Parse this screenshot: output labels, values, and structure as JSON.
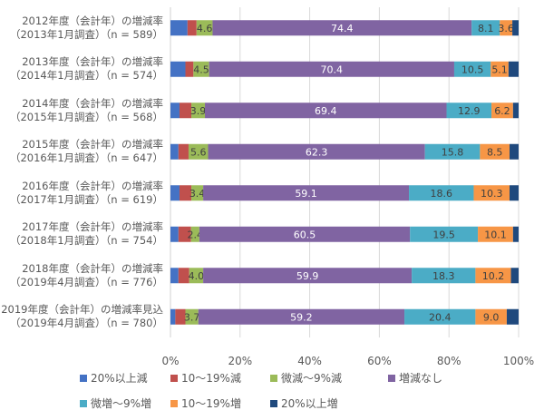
{
  "chart_data": {
    "type": "bar",
    "orientation": "horizontal",
    "stacked": "percent",
    "title": "",
    "xlabel": "",
    "ylabel": "",
    "xlim": [
      0,
      100
    ],
    "grid": true,
    "legend_position": "bottom",
    "x_ticks": [
      "0%",
      "20%",
      "40%",
      "60%",
      "80%",
      "100%"
    ],
    "categories": [
      [
        "2012年度（会計年）の増減率",
        "（2013年1月調査）（n = 589）"
      ],
      [
        "2013年度（会計年）の増減率",
        "（2014年1月調査）（n = 574）"
      ],
      [
        "2014年度（会計年）の増減率",
        "（2015年1月調査）（n = 568）"
      ],
      [
        "2015年度（会計年）の増減率",
        "（2016年1月調査）（n = 647）"
      ],
      [
        "2016年度（会計年）の増減率",
        "（2017年1月調査）（n = 619）"
      ],
      [
        "2017年度（会計年）の増減率",
        "（2018年1月調査）（n = 754）"
      ],
      [
        "2018年度（会計年）の増減率",
        "（2019年4月調査）（n = 776）"
      ],
      [
        "2019年度（会計年）の増減率見込",
        "（2019年4月調査）（n = 780）"
      ]
    ],
    "series": [
      {
        "name": "20%以上減",
        "color": "#4472C4",
        "values": [
          4.9,
          4.3,
          2.6,
          2.3,
          2.6,
          2.3,
          2.3,
          1.4
        ],
        "labels": [
          null,
          null,
          null,
          null,
          null,
          null,
          null,
          null
        ]
      },
      {
        "name": "10〜19%減",
        "color": "#C0504D",
        "values": [
          2.6,
          2.3,
          3.4,
          2.9,
          3.4,
          3.6,
          3.1,
          2.9
        ],
        "labels": [
          null,
          null,
          null,
          null,
          null,
          null,
          null,
          null
        ]
      },
      {
        "name": "微減〜9%減",
        "color": "#9BBB59",
        "values": [
          4.6,
          4.5,
          3.9,
          5.6,
          3.4,
          2.4,
          4.0,
          3.7
        ],
        "labels": [
          "4.6",
          "4.5",
          "3.9",
          "5.6",
          "3.4",
          "2.4",
          "4.0",
          "3.7"
        ]
      },
      {
        "name": "増減なし",
        "color": "#8064A2",
        "values": [
          74.4,
          70.4,
          69.4,
          62.3,
          59.1,
          60.5,
          59.9,
          59.2
        ],
        "labels": [
          "74.4",
          "70.4",
          "69.4",
          "62.3",
          "59.1",
          "60.5",
          "59.9",
          "59.2"
        ]
      },
      {
        "name": "微増〜9%増",
        "color": "#4BACC6",
        "values": [
          8.1,
          10.5,
          12.9,
          15.8,
          18.6,
          19.5,
          18.3,
          20.4
        ],
        "labels": [
          "8.1",
          "10.5",
          "12.9",
          "15.8",
          "18.6",
          "19.5",
          "18.3",
          "20.4"
        ]
      },
      {
        "name": "10〜19%増",
        "color": "#F79646",
        "values": [
          3.6,
          5.1,
          6.2,
          8.5,
          10.3,
          10.1,
          10.2,
          9.0
        ],
        "labels": [
          "3.6",
          "5.1",
          "6.2",
          "8.5",
          "10.3",
          "10.1",
          "10.2",
          "9.0"
        ]
      },
      {
        "name": "20%以上増",
        "color": "#1F497D",
        "values": [
          1.8,
          2.9,
          1.6,
          2.6,
          2.6,
          1.6,
          2.2,
          3.4
        ],
        "labels": [
          null,
          null,
          null,
          null,
          null,
          null,
          null,
          null
        ]
      }
    ]
  }
}
